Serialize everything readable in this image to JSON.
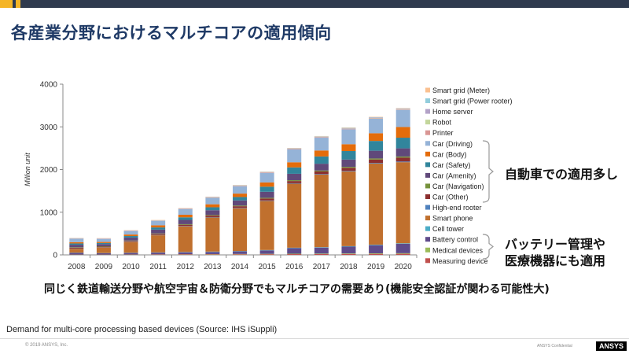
{
  "slide": {
    "title": "各産業分野におけるマルチコアの適用傾向",
    "bracket_automotive": "自動車での適用多し",
    "bracket_battery_line1": "バッテリー管理や",
    "bracket_battery_line2": "医療機器にも適用",
    "bottom_note": "同じく鉄道輸送分野や航空宇宙＆防衛分野でもマルチコアの需要あり(機能安全認証が関わる可能性大)",
    "caption": "Demand for multi-core processing based devices (Source: IHS iSuppli)",
    "copyright": "© 2019 ANSYS, Inc.",
    "confidential": "ANSYS Confidential",
    "logo": "ANSYS"
  },
  "chart_data": {
    "type": "bar",
    "stacked": true,
    "title": "",
    "xlabel": "",
    "ylabel": "Million unit",
    "ylim": [
      0,
      4000
    ],
    "yticks": [
      0,
      1000,
      2000,
      3000,
      4000
    ],
    "categories": [
      "2008",
      "2009",
      "2010",
      "2011",
      "2012",
      "2013",
      "2014",
      "2015",
      "2016",
      "2017",
      "2018",
      "2019",
      "2020"
    ],
    "series": [
      {
        "name": "Measuring device",
        "color": "#c0504d",
        "values": [
          5,
          5,
          6,
          8,
          10,
          12,
          14,
          16,
          18,
          20,
          22,
          24,
          26
        ]
      },
      {
        "name": "Medical devices",
        "color": "#9bbb59",
        "values": [
          3,
          3,
          4,
          5,
          6,
          7,
          8,
          9,
          10,
          11,
          12,
          13,
          14
        ]
      },
      {
        "name": "Battery control",
        "color": "#5f4b8b",
        "values": [
          40,
          30,
          35,
          40,
          45,
          50,
          60,
          80,
          130,
          140,
          160,
          190,
          220
        ]
      },
      {
        "name": "Cell tower",
        "color": "#4bacc6",
        "values": [
          5,
          5,
          6,
          6,
          7,
          8,
          8,
          9,
          10,
          10,
          11,
          12,
          12
        ]
      },
      {
        "name": "Smart phone",
        "color": "#c0702e",
        "values": [
          90,
          130,
          250,
          400,
          600,
          800,
          1000,
          1150,
          1500,
          1700,
          1750,
          1900,
          1900
        ]
      },
      {
        "name": "High-end rooter",
        "color": "#4f81bd",
        "values": [
          5,
          5,
          6,
          7,
          8,
          9,
          10,
          11,
          12,
          13,
          14,
          15,
          16
        ]
      },
      {
        "name": "Car (Other)",
        "color": "#8b2f2f",
        "values": [
          20,
          15,
          20,
          25,
          30,
          35,
          40,
          45,
          50,
          60,
          70,
          80,
          90
        ]
      },
      {
        "name": "Car (Navigation)",
        "color": "#76923c",
        "values": [
          10,
          10,
          10,
          12,
          14,
          15,
          16,
          18,
          20,
          22,
          24,
          26,
          28
        ]
      },
      {
        "name": "Car (Amenity)",
        "color": "#60497a",
        "values": [
          60,
          50,
          70,
          90,
          100,
          110,
          120,
          140,
          150,
          160,
          170,
          180,
          190
        ]
      },
      {
        "name": "Car (Safety)",
        "color": "#31859c",
        "values": [
          30,
          25,
          35,
          50,
          60,
          70,
          80,
          120,
          150,
          170,
          200,
          230,
          250
        ]
      },
      {
        "name": "Car (Body)",
        "color": "#e46c0a",
        "values": [
          30,
          25,
          35,
          50,
          60,
          70,
          80,
          100,
          120,
          140,
          160,
          180,
          250
        ]
      },
      {
        "name": "Car (Driving)",
        "color": "#95b3d7",
        "values": [
          80,
          70,
          80,
          100,
          130,
          150,
          170,
          220,
          300,
          300,
          350,
          340,
          400
        ]
      },
      {
        "name": "Printer",
        "color": "#d99694",
        "values": [
          5,
          5,
          6,
          6,
          7,
          7,
          8,
          8,
          9,
          9,
          10,
          10,
          11
        ]
      },
      {
        "name": "Robot",
        "color": "#c3d69b",
        "values": [
          2,
          2,
          2,
          2,
          3,
          3,
          3,
          4,
          4,
          5,
          5,
          6,
          6
        ]
      },
      {
        "name": "Home server",
        "color": "#b3a2c7",
        "values": [
          5,
          5,
          6,
          6,
          7,
          7,
          8,
          8,
          9,
          9,
          10,
          10,
          11
        ]
      },
      {
        "name": "Smart grid (Power rooter)",
        "color": "#92cddc",
        "values": [
          3,
          3,
          4,
          4,
          5,
          5,
          6,
          6,
          7,
          7,
          8,
          8,
          9
        ]
      },
      {
        "name": "Smart grid (Meter)",
        "color": "#fac090",
        "values": [
          5,
          5,
          5,
          6,
          6,
          7,
          7,
          8,
          8,
          9,
          9,
          10,
          10
        ]
      }
    ]
  }
}
